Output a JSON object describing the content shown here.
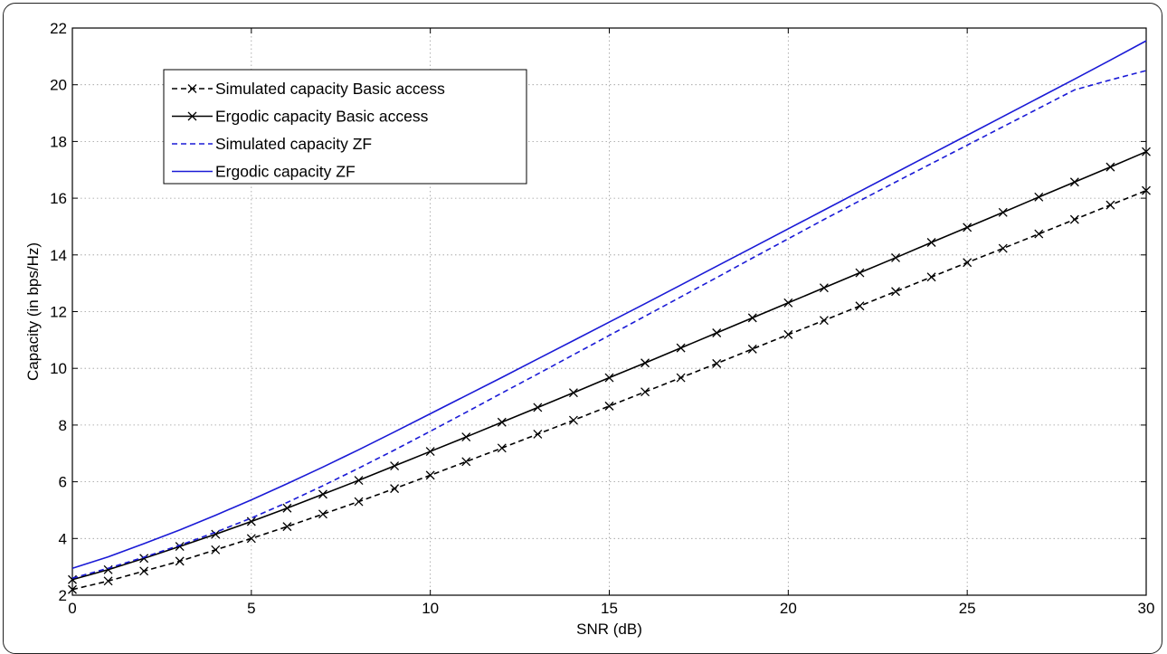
{
  "chart_data": {
    "type": "line",
    "xlabel": "SNR (dB)",
    "ylabel": "Capacity (in bps/Hz)",
    "xlim": [
      0,
      30
    ],
    "ylim": [
      2,
      22
    ],
    "xticks": [
      0,
      5,
      10,
      15,
      20,
      25,
      30
    ],
    "yticks": [
      2,
      4,
      6,
      8,
      10,
      12,
      14,
      16,
      18,
      20,
      22
    ],
    "grid": true,
    "legend_position": "top-left",
    "x": [
      0,
      1,
      2,
      3,
      4,
      5,
      6,
      7,
      8,
      9,
      10,
      11,
      12,
      13,
      14,
      15,
      16,
      17,
      18,
      19,
      20,
      21,
      22,
      23,
      24,
      25,
      26,
      27,
      28,
      29,
      30
    ],
    "series": [
      {
        "name": "Simulated capacity Basic access",
        "color": "#000000",
        "line_style": "dashed",
        "marker": "x",
        "values": [
          2.2,
          2.5,
          2.85,
          3.2,
          3.6,
          4.0,
          4.42,
          4.86,
          5.3,
          5.76,
          6.23,
          6.71,
          7.19,
          7.68,
          8.17,
          8.67,
          9.17,
          9.67,
          10.17,
          10.68,
          11.19,
          11.69,
          12.2,
          12.71,
          13.22,
          13.73,
          14.23,
          14.74,
          15.25,
          15.76,
          16.27
        ]
      },
      {
        "name": "Ergodic capacity Basic access",
        "color": "#000000",
        "line_style": "solid",
        "marker": "x",
        "values": [
          2.55,
          2.9,
          3.3,
          3.72,
          4.15,
          4.6,
          5.07,
          5.56,
          6.05,
          6.56,
          7.07,
          7.58,
          8.1,
          8.62,
          9.14,
          9.67,
          10.19,
          10.72,
          11.25,
          11.78,
          12.31,
          12.84,
          13.37,
          13.9,
          14.44,
          14.97,
          15.5,
          16.04,
          16.57,
          17.1,
          17.64
        ]
      },
      {
        "name": "Simulated capacity ZF",
        "color": "#1a1ad6",
        "line_style": "dashed",
        "marker": "none",
        "values": [
          2.6,
          2.95,
          3.34,
          3.76,
          4.22,
          4.72,
          5.27,
          5.86,
          6.48,
          7.12,
          7.78,
          8.45,
          9.13,
          9.8,
          10.48,
          11.16,
          11.84,
          12.52,
          13.2,
          13.89,
          14.57,
          15.25,
          15.91,
          16.57,
          17.22,
          17.87,
          18.52,
          19.17,
          19.82,
          20.17,
          20.5
        ]
      },
      {
        "name": "Ergodic capacity ZF",
        "color": "#1a1ad6",
        "line_style": "solid",
        "marker": "none",
        "values": [
          2.95,
          3.35,
          3.82,
          4.3,
          4.82,
          5.36,
          5.93,
          6.52,
          7.13,
          7.76,
          8.4,
          9.04,
          9.68,
          10.33,
          10.98,
          11.63,
          12.28,
          12.94,
          13.6,
          14.26,
          14.92,
          15.58,
          16.24,
          16.9,
          17.56,
          18.22,
          18.88,
          19.54,
          20.2,
          20.87,
          21.55
        ]
      }
    ]
  }
}
